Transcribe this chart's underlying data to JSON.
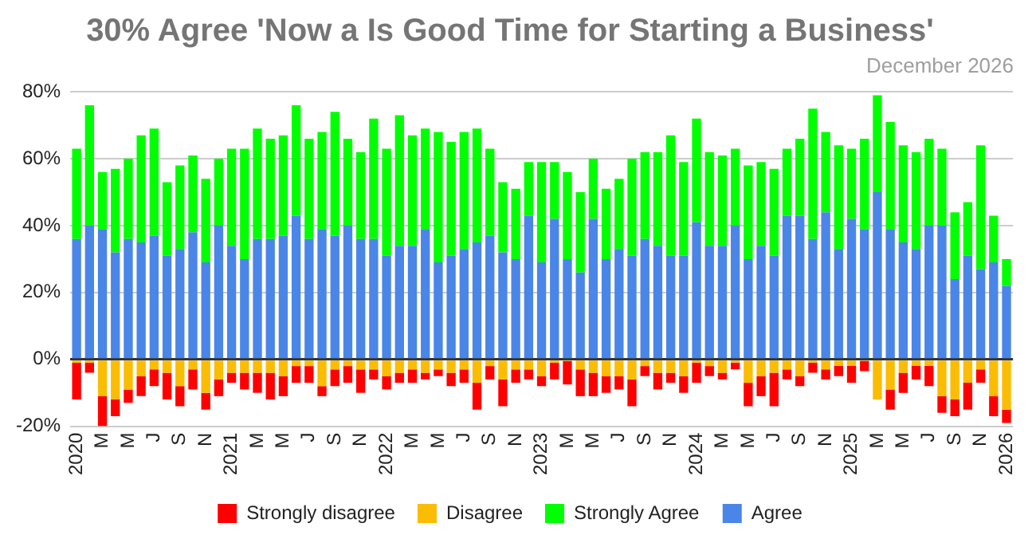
{
  "chart_data": {
    "type": "bar",
    "title": "30% Agree 'Now a Is Good Time for Starting a Business'",
    "subtitle": "December 2026",
    "categories": [
      "2020",
      null,
      "M",
      null,
      "M",
      null,
      "J",
      null,
      "S",
      null,
      "N",
      null,
      "2021",
      null,
      "M",
      null,
      "M",
      null,
      "J",
      null,
      "S",
      null,
      "N",
      null,
      "2022",
      null,
      "M",
      null,
      "M",
      null,
      "J",
      null,
      "S",
      null,
      "N",
      null,
      "2023",
      null,
      "M",
      null,
      "M",
      null,
      "J",
      null,
      "S",
      null,
      "N",
      null,
      "2024",
      null,
      "M",
      null,
      "M",
      null,
      "J",
      null,
      "S",
      null,
      "N",
      null,
      "2025",
      null,
      "M",
      null,
      "M",
      null,
      "J",
      null,
      "S",
      null,
      "N",
      null,
      "2026"
    ],
    "series": [
      {
        "name": "Agree",
        "color": "#4a86e8",
        "values": [
          36,
          40,
          39,
          32,
          36,
          35,
          37,
          31,
          33,
          38,
          29,
          40,
          34,
          30,
          36,
          36,
          37,
          43,
          36,
          39,
          37,
          40,
          36,
          36,
          31,
          34,
          34,
          39,
          29,
          31,
          33,
          35,
          37,
          32,
          30,
          43,
          29,
          42,
          30,
          26,
          42,
          30,
          33,
          31,
          36,
          34,
          31,
          31,
          41,
          34,
          34,
          40,
          30,
          34,
          31,
          43,
          43,
          36,
          44,
          33,
          42,
          39,
          50,
          39,
          35,
          33,
          40,
          40,
          24,
          31,
          27,
          29,
          22
        ]
      },
      {
        "name": "Strongly Agree",
        "color": "#00ff00",
        "values": [
          27,
          36,
          17,
          25,
          24,
          32,
          32,
          22,
          25,
          23,
          25,
          20,
          29,
          33,
          33,
          30,
          30,
          33,
          30,
          29,
          37,
          26,
          26,
          36,
          32,
          39,
          33,
          30,
          39,
          34,
          35,
          34,
          26,
          21,
          21,
          16,
          30,
          17,
          26,
          24,
          18,
          21,
          21,
          29,
          26,
          28,
          36,
          28,
          31,
          28,
          27,
          23,
          28,
          25,
          26,
          20,
          23,
          39,
          24,
          31,
          21,
          27,
          29,
          32,
          29,
          29,
          26,
          23,
          20,
          16,
          37,
          14,
          8
        ]
      },
      {
        "name": "Disagree",
        "color": "#fbbc04",
        "values": [
          -1,
          -1,
          -11,
          -12,
          -9,
          -5,
          -3,
          -4,
          -8,
          -3,
          -10,
          -6,
          -4,
          -4,
          -4,
          -4,
          -5,
          -2,
          -2,
          -8,
          -3,
          -2,
          -3,
          -3,
          -5,
          -4,
          -3,
          -4,
          -3,
          -4,
          -3,
          -7,
          -2,
          -6,
          -3,
          -3,
          -5,
          -1,
          -0.5,
          -3,
          -4,
          -5,
          -5,
          -6,
          -2,
          -4,
          -4,
          -5,
          -1,
          -2,
          -4,
          -1,
          -7,
          -5,
          -4,
          -3,
          -5,
          -1,
          -3,
          -2,
          -2,
          -0.5,
          -12,
          -9,
          -4,
          -2,
          -2,
          -11,
          -12,
          -7,
          -3,
          -11,
          -15
        ]
      },
      {
        "name": "Strongly disagree",
        "color": "#ff0000",
        "values": [
          -11,
          -3,
          -9,
          -5,
          -4,
          -6,
          -5,
          -8,
          -6,
          -6,
          -5,
          -5,
          -3,
          -5,
          -6,
          -8,
          -6,
          -5,
          -5,
          -3,
          -5,
          -5,
          -7,
          -3,
          -4,
          -3,
          -4,
          -2,
          -2,
          -4,
          -4,
          -8,
          -4,
          -8,
          -4,
          -3,
          -3,
          -5,
          -7,
          -8,
          -7,
          -5,
          -4,
          -8,
          -3,
          -5,
          -3,
          -5,
          -6,
          -3,
          -2,
          -2,
          -7,
          -6,
          -10,
          -3,
          -3,
          -3,
          -3,
          -3,
          -5,
          -3,
          0,
          -6,
          -6,
          -4,
          -6,
          -5,
          -5,
          -8,
          -4,
          -6,
          -4
        ]
      }
    ],
    "stacked": true,
    "ylim": [
      -20,
      80
    ],
    "yticks": [
      {
        "value": -20,
        "label": "-20%"
      },
      {
        "value": 0,
        "label": "0%"
      },
      {
        "value": 20,
        "label": "20%"
      },
      {
        "value": 40,
        "label": "40%"
      },
      {
        "value": 60,
        "label": "60%"
      },
      {
        "value": 80,
        "label": "80%"
      }
    ],
    "grid": "y",
    "legend": "bottom"
  }
}
